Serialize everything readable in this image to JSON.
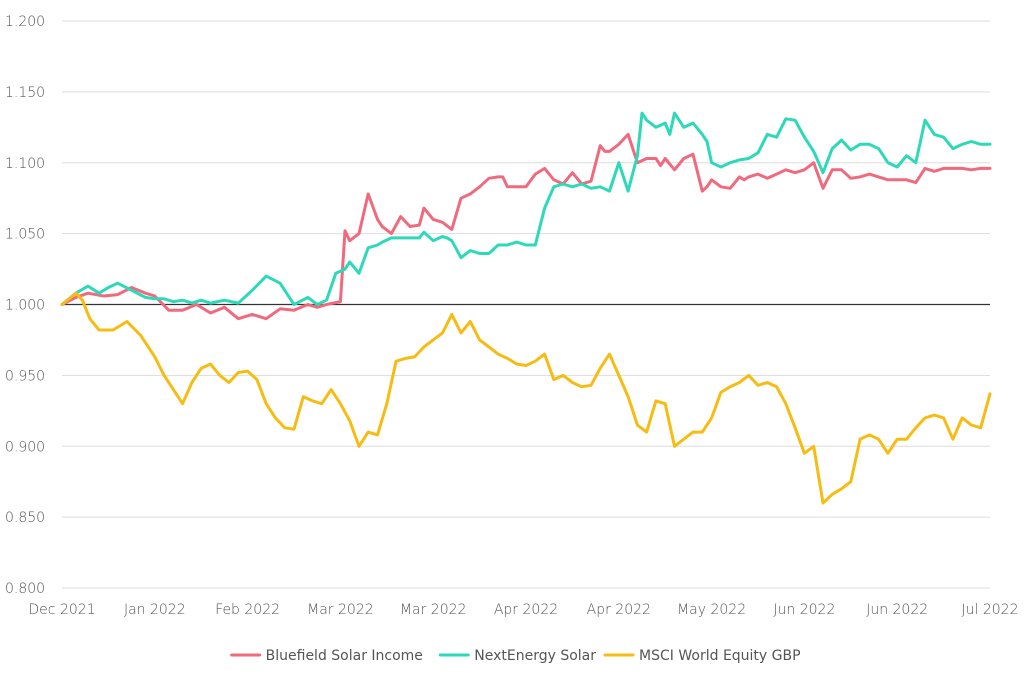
{
  "chart_data": {
    "type": "line",
    "title": "",
    "xlabel": "",
    "ylabel": "",
    "ylim": [
      0.8,
      1.2
    ],
    "y_ticks": [
      "0.800",
      "0.850",
      "0.900",
      "0.950",
      "1.000",
      "1.050",
      "1.100",
      "1.150",
      "1.200"
    ],
    "x_ticks": [
      "Dec 2021",
      "Jan 2022",
      "Feb 2022",
      "Mar 2022",
      "Mar 2022",
      "Apr 2022",
      "Apr 2022",
      "May 2022",
      "Jun 2022",
      "Jun 2022",
      "Jul 2022"
    ],
    "grid": "horizontal",
    "reference_line": 1.0,
    "legend_position": "bottom",
    "colors": {
      "Bluefield Solar Income": "#f06a7e",
      "NextEnergy Solar": "#2dd9b8",
      "MSCI World Equity GBP": "#f7bc14",
      "reference": "#333333",
      "grid": "#dddddd"
    },
    "series": [
      {
        "name": "Bluefield Solar Income",
        "x": [
          0,
          0.15,
          0.28,
          0.45,
          0.6,
          0.75,
          0.9,
          1.0,
          1.15,
          1.3,
          1.45,
          1.6,
          1.75,
          1.9,
          2.05,
          2.2,
          2.35,
          2.5,
          2.65,
          2.75,
          2.85,
          3.0,
          3.05,
          3.1,
          3.2,
          3.3,
          3.4,
          3.45,
          3.55,
          3.65,
          3.75,
          3.85,
          3.9,
          4.0,
          4.1,
          4.2,
          4.3,
          4.4,
          4.5,
          4.6,
          4.7,
          4.75,
          4.8,
          4.9,
          5.0,
          5.1,
          5.2,
          5.3,
          5.4,
          5.5,
          5.6,
          5.7,
          5.8,
          5.85,
          5.9,
          6.0,
          6.1,
          6.2,
          6.3,
          6.4,
          6.45,
          6.5,
          6.6,
          6.7,
          6.8,
          6.9,
          6.95,
          7.0,
          7.1,
          7.2,
          7.3,
          7.35,
          7.4,
          7.5,
          7.6,
          7.7,
          7.8,
          7.9,
          8.0,
          8.1,
          8.2,
          8.3,
          8.4,
          8.5,
          8.6,
          8.7,
          8.8,
          8.9,
          9.0,
          9.1,
          9.2,
          9.3,
          9.4,
          9.5,
          9.6,
          9.7,
          9.8,
          9.9,
          10.0
        ],
        "values": [
          1.0,
          1.005,
          1.008,
          1.006,
          1.007,
          1.012,
          1.008,
          1.006,
          0.996,
          0.996,
          1.0,
          0.994,
          0.998,
          0.99,
          0.993,
          0.99,
          0.997,
          0.996,
          1.0,
          0.998,
          1.0,
          1.002,
          1.052,
          1.045,
          1.05,
          1.078,
          1.06,
          1.055,
          1.05,
          1.062,
          1.055,
          1.056,
          1.068,
          1.06,
          1.058,
          1.053,
          1.075,
          1.078,
          1.083,
          1.089,
          1.09,
          1.09,
          1.083,
          1.083,
          1.083,
          1.092,
          1.096,
          1.088,
          1.085,
          1.093,
          1.085,
          1.087,
          1.112,
          1.108,
          1.108,
          1.113,
          1.12,
          1.1,
          1.103,
          1.103,
          1.098,
          1.103,
          1.095,
          1.103,
          1.106,
          1.08,
          1.083,
          1.088,
          1.083,
          1.082,
          1.09,
          1.088,
          1.09,
          1.092,
          1.089,
          1.092,
          1.095,
          1.093,
          1.095,
          1.1,
          1.082,
          1.095,
          1.095,
          1.089,
          1.09,
          1.092,
          1.09,
          1.088,
          1.088,
          1.088,
          1.086,
          1.096,
          1.094,
          1.096,
          1.096,
          1.096,
          1.095,
          1.096,
          1.096
        ]
      },
      {
        "name": "NextEnergy Solar",
        "x": [
          0,
          0.15,
          0.28,
          0.4,
          0.5,
          0.6,
          0.75,
          0.9,
          1.0,
          1.1,
          1.2,
          1.3,
          1.4,
          1.5,
          1.6,
          1.75,
          1.9,
          2.05,
          2.2,
          2.35,
          2.5,
          2.65,
          2.75,
          2.85,
          2.95,
          3.05,
          3.1,
          3.2,
          3.3,
          3.4,
          3.45,
          3.55,
          3.65,
          3.75,
          3.85,
          3.9,
          4.0,
          4.1,
          4.15,
          4.2,
          4.3,
          4.4,
          4.5,
          4.6,
          4.7,
          4.8,
          4.9,
          5.0,
          5.1,
          5.2,
          5.3,
          5.4,
          5.5,
          5.6,
          5.7,
          5.8,
          5.9,
          6.0,
          6.1,
          6.2,
          6.25,
          6.3,
          6.4,
          6.5,
          6.55,
          6.6,
          6.7,
          6.8,
          6.9,
          6.95,
          7.0,
          7.1,
          7.2,
          7.3,
          7.4,
          7.5,
          7.6,
          7.7,
          7.8,
          7.9,
          8.0,
          8.1,
          8.2,
          8.3,
          8.4,
          8.5,
          8.6,
          8.7,
          8.8,
          8.9,
          9.0,
          9.1,
          9.2,
          9.3,
          9.4,
          9.5,
          9.6,
          9.7,
          9.8,
          9.9,
          10.0
        ],
        "values": [
          1.0,
          1.008,
          1.013,
          1.008,
          1.012,
          1.015,
          1.01,
          1.005,
          1.004,
          1.004,
          1.002,
          1.003,
          1.001,
          1.003,
          1.001,
          1.003,
          1.001,
          1.01,
          1.02,
          1.015,
          1.0,
          1.005,
          1.0,
          1.003,
          1.022,
          1.025,
          1.03,
          1.022,
          1.04,
          1.042,
          1.044,
          1.047,
          1.047,
          1.047,
          1.047,
          1.051,
          1.045,
          1.048,
          1.047,
          1.045,
          1.033,
          1.038,
          1.036,
          1.036,
          1.042,
          1.042,
          1.044,
          1.042,
          1.042,
          1.068,
          1.083,
          1.085,
          1.083,
          1.085,
          1.082,
          1.083,
          1.08,
          1.1,
          1.08,
          1.105,
          1.135,
          1.13,
          1.125,
          1.128,
          1.12,
          1.135,
          1.125,
          1.128,
          1.12,
          1.115,
          1.1,
          1.097,
          1.1,
          1.102,
          1.103,
          1.107,
          1.12,
          1.118,
          1.131,
          1.13,
          1.118,
          1.108,
          1.093,
          1.11,
          1.116,
          1.109,
          1.113,
          1.113,
          1.11,
          1.1,
          1.097,
          1.105,
          1.1,
          1.13,
          1.12,
          1.118,
          1.11,
          1.113,
          1.115,
          1.113,
          1.113
        ]
      },
      {
        "name": "MSCI World Equity GBP",
        "x": [
          0,
          0.15,
          0.22,
          0.3,
          0.4,
          0.55,
          0.7,
          0.85,
          1.0,
          1.1,
          1.2,
          1.3,
          1.4,
          1.5,
          1.6,
          1.7,
          1.8,
          1.9,
          2.0,
          2.1,
          2.2,
          2.3,
          2.4,
          2.5,
          2.6,
          2.7,
          2.8,
          2.9,
          3.0,
          3.1,
          3.2,
          3.3,
          3.4,
          3.5,
          3.6,
          3.7,
          3.8,
          3.9,
          4.0,
          4.1,
          4.2,
          4.3,
          4.4,
          4.5,
          4.6,
          4.7,
          4.8,
          4.9,
          5.0,
          5.1,
          5.2,
          5.3,
          5.4,
          5.5,
          5.6,
          5.7,
          5.8,
          5.9,
          6.0,
          6.1,
          6.2,
          6.3,
          6.4,
          6.5,
          6.6,
          6.7,
          6.8,
          6.9,
          7.0,
          7.1,
          7.2,
          7.3,
          7.4,
          7.5,
          7.6,
          7.7,
          7.8,
          7.9,
          8.0,
          8.1,
          8.2,
          8.3,
          8.4,
          8.5,
          8.6,
          8.7,
          8.8,
          8.9,
          9.0,
          9.1,
          9.2,
          9.3,
          9.4,
          9.5,
          9.6,
          9.7,
          9.8,
          9.9,
          10.0
        ],
        "values": [
          1.0,
          1.008,
          1.003,
          0.99,
          0.982,
          0.982,
          0.988,
          0.978,
          0.963,
          0.95,
          0.94,
          0.93,
          0.945,
          0.955,
          0.958,
          0.95,
          0.945,
          0.952,
          0.953,
          0.947,
          0.93,
          0.92,
          0.913,
          0.912,
          0.935,
          0.932,
          0.93,
          0.94,
          0.93,
          0.918,
          0.9,
          0.91,
          0.908,
          0.93,
          0.96,
          0.962,
          0.963,
          0.97,
          0.975,
          0.98,
          0.993,
          0.98,
          0.988,
          0.975,
          0.97,
          0.965,
          0.962,
          0.958,
          0.957,
          0.96,
          0.965,
          0.947,
          0.95,
          0.945,
          0.942,
          0.943,
          0.955,
          0.965,
          0.95,
          0.935,
          0.915,
          0.91,
          0.932,
          0.93,
          0.9,
          0.905,
          0.91,
          0.91,
          0.92,
          0.938,
          0.942,
          0.945,
          0.95,
          0.943,
          0.945,
          0.942,
          0.93,
          0.913,
          0.895,
          0.9,
          0.86,
          0.866,
          0.87,
          0.875,
          0.905,
          0.908,
          0.905,
          0.895,
          0.905,
          0.905,
          0.913,
          0.92,
          0.922,
          0.92,
          0.905,
          0.92,
          0.915,
          0.913,
          0.937
        ]
      }
    ]
  }
}
